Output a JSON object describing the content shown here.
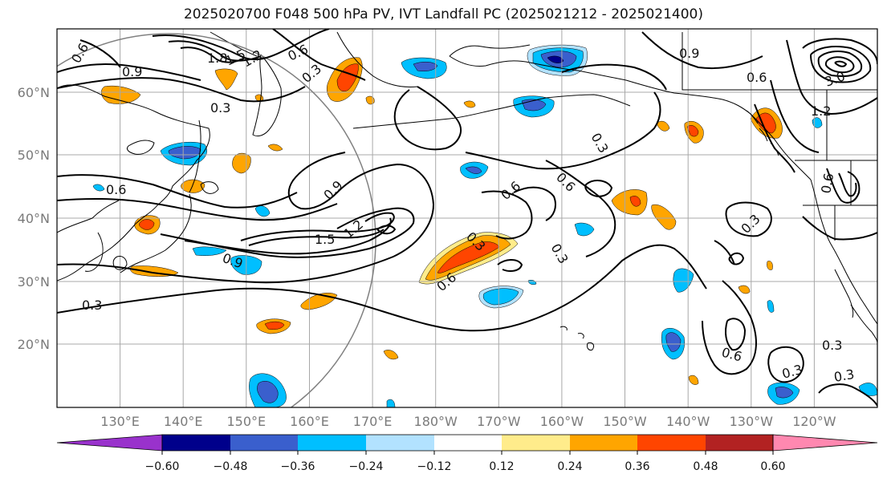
{
  "title": "2025020700 F048 500 hPa PV, IVT Landfall PC (2025021212 - 2025021400)",
  "lat_labels": [
    "20°N",
    "30°N",
    "40°N",
    "50°N",
    "60°N"
  ],
  "lon_labels": [
    "130°E",
    "140°E",
    "150°E",
    "160°E",
    "170°E",
    "180°W",
    "170°W",
    "160°W",
    "150°W",
    "140°W",
    "130°W",
    "120°W"
  ],
  "contour_labels": [
    "0.6",
    "1.8",
    "1.5",
    "1.2",
    "0.9",
    "0.6",
    "0.3",
    "0.3",
    "0.9",
    "0.6",
    "3.0",
    "1.2",
    "0.3",
    "0.6",
    "0.6",
    "0.9",
    "1.5",
    "1.2",
    "0.9",
    "0.3",
    "0.3",
    "0.6",
    "0.6",
    "0.3",
    "0.6",
    "0.3",
    "0.3",
    "0.3",
    "0.3",
    "0.6"
  ],
  "colorbar": {
    "colors": [
      "#9932cc",
      "#00008b",
      "#3a5fcd",
      "#00bfff",
      "#b2e2ff",
      "#ffffff",
      "#ffec8b",
      "#ffa500",
      "#ff4500",
      "#b22222",
      "#ff88b0"
    ],
    "tick_labels": [
      "−0.60",
      "−0.48",
      "−0.36",
      "−0.24",
      "−0.12",
      "0.12",
      "0.24",
      "0.36",
      "0.48",
      "0.60"
    ]
  },
  "legend_colors": {
    "positive": [
      "#ffec8b",
      "#ffa500",
      "#ff4500"
    ],
    "negative": [
      "#b2e2ff",
      "#00bfff",
      "#3a5fcd"
    ]
  }
}
